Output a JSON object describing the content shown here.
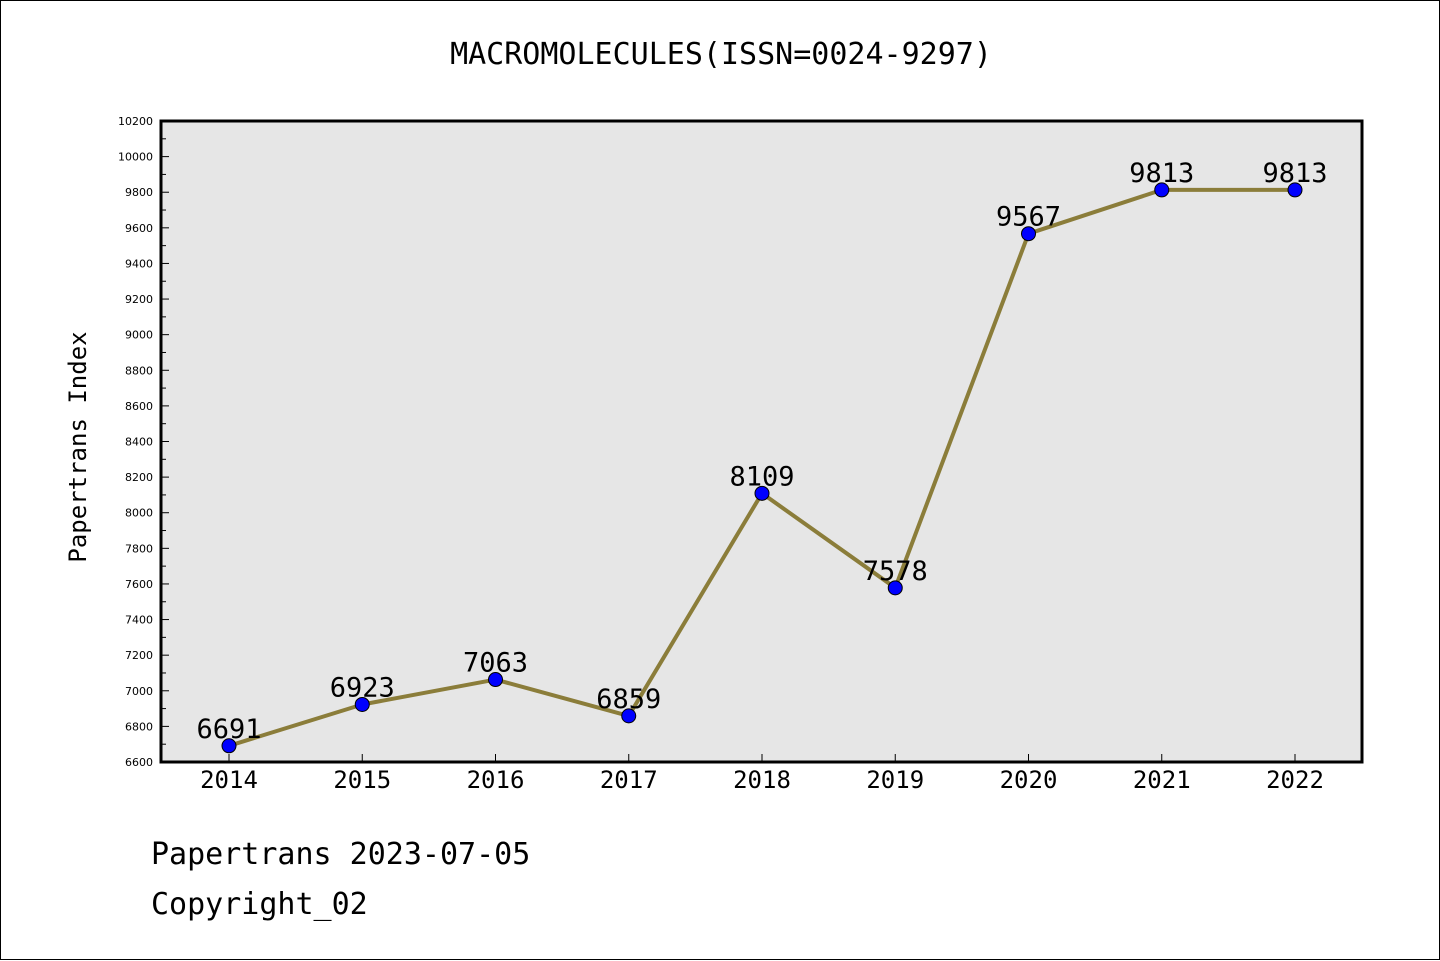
{
  "footer": {
    "date_text": "Papertrans 2023-07-05",
    "copyright_text": "Copyright_02"
  },
  "chart_data": {
    "type": "line",
    "title": "MACROMOLECULES(ISSN=0024-9297)",
    "xlabel": "",
    "ylabel": "Papertrans Index",
    "x": [
      "2014",
      "2015",
      "2016",
      "2017",
      "2018",
      "2019",
      "2020",
      "2021",
      "2022"
    ],
    "series": [
      {
        "values": [
          6691,
          6923,
          7063,
          6859,
          8109,
          7578,
          9567,
          9813,
          9813
        ]
      }
    ],
    "ylim": [
      6600,
      10200
    ],
    "yticks": [
      6600,
      6800,
      7000,
      7200,
      7400,
      7600,
      7800,
      8000,
      8200,
      8400,
      8600,
      8800,
      9000,
      9200,
      9400,
      9600,
      9800,
      10000,
      10200
    ],
    "data_labels": true,
    "grid": false,
    "line_color": "#8b7d3a",
    "marker_color": "#0000ff",
    "plot_background": "#e6e6e6"
  }
}
